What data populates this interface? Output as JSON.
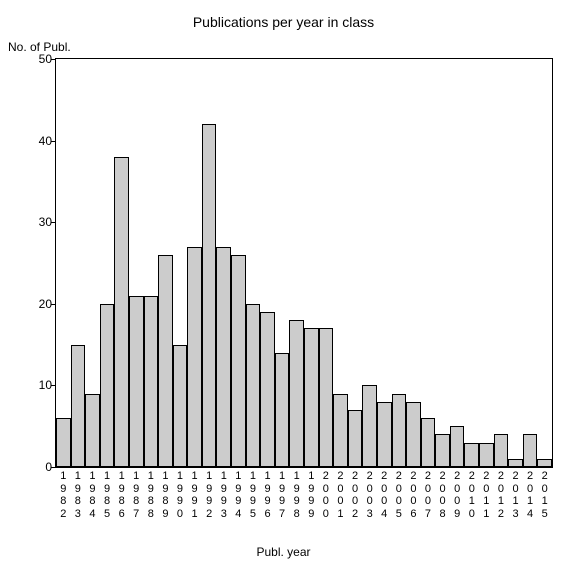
{
  "chart": {
    "type": "bar",
    "title": "Publications per year in class",
    "title_fontsize": 14,
    "xlabel": "Publ. year",
    "ylabel": "No. of Publ.",
    "label_fontsize": 12,
    "background_color": "#ffffff",
    "axis_color": "#000000",
    "bar_fill_color": "#cccccc",
    "bar_border_color": "#000000",
    "ylim": [
      0,
      50
    ],
    "ytick_step": 10,
    "yticks": [
      0,
      10,
      20,
      30,
      40,
      50
    ],
    "tick_fontsize": 12,
    "years": [
      1982,
      1983,
      1984,
      1985,
      1986,
      1987,
      1988,
      1989,
      1990,
      1991,
      1992,
      1993,
      1994,
      1995,
      1996,
      1997,
      1998,
      1999,
      2000,
      2001,
      2002,
      2003,
      2004,
      2005,
      2006,
      2007,
      2008,
      2009,
      2010,
      2011,
      2012,
      2013,
      2014,
      2015
    ],
    "values": [
      6,
      15,
      9,
      20,
      38,
      21,
      21,
      26,
      15,
      27,
      42,
      27,
      26,
      20,
      19,
      14,
      18,
      17,
      17,
      9,
      7,
      10,
      8,
      9,
      8,
      6,
      4,
      5,
      3,
      3,
      4,
      1,
      4,
      1
    ]
  }
}
